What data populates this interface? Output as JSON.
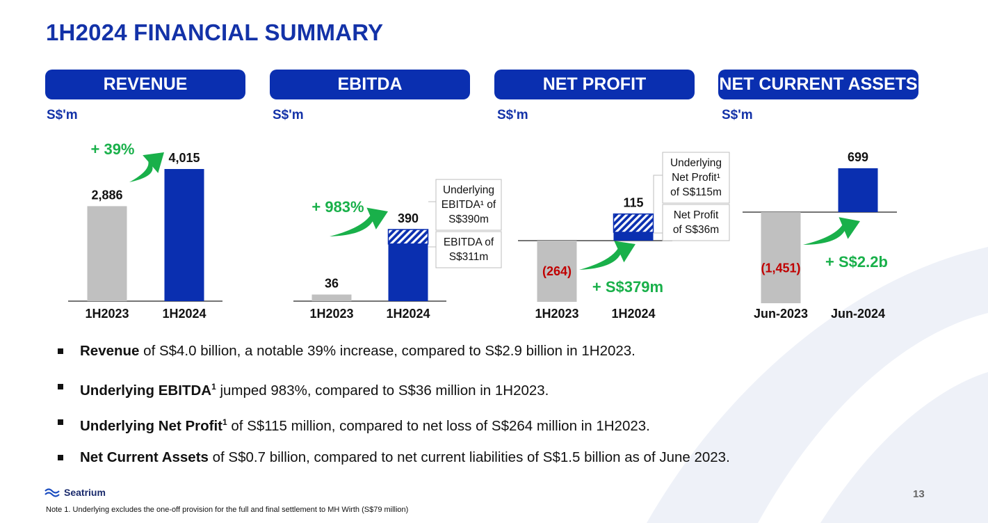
{
  "slide": {
    "title": "1H2024 FINANCIAL SUMMARY",
    "page_number": "13",
    "logo_text": "Seatrium",
    "note": "Note 1. Underlying excludes the one-off provision for the full and final settlement to MH Wirth (S$79 million)"
  },
  "colors": {
    "brand_blue": "#0a2fb0",
    "prior_gray": "#c0c0c0",
    "growth_green": "#19b04a",
    "negative_red": "#c00000"
  },
  "chart_data": [
    {
      "type": "bar",
      "title": "REVENUE",
      "unit": "S$'m",
      "categories": [
        "1H2023",
        "1H2024"
      ],
      "values": [
        2886,
        4015
      ],
      "value_labels": [
        "2,886",
        "4,015"
      ],
      "change_label": "+ 39%"
    },
    {
      "type": "bar",
      "title": "EBITDA",
      "unit": "S$'m",
      "categories": [
        "1H2023",
        "1H2024"
      ],
      "values": [
        36,
        390
      ],
      "value_labels": [
        "36",
        "390"
      ],
      "stacked_segments": [
        {
          "name": "EBITDA",
          "value": 311
        },
        {
          "name": "Underlying adjustment",
          "value": 79
        }
      ],
      "change_label": "+ 983%",
      "callouts": [
        {
          "lines": [
            "Underlying",
            "EBITDA¹ of",
            "S$390m"
          ]
        },
        {
          "lines": [
            "EBITDA of",
            "S$311m"
          ]
        }
      ]
    },
    {
      "type": "bar",
      "title": "NET PROFIT",
      "unit": "S$'m",
      "categories": [
        "1H2023",
        "1H2024"
      ],
      "values": [
        -264,
        115
      ],
      "value_labels": [
        "(264)",
        "115"
      ],
      "stacked_segments": [
        {
          "name": "Net Profit",
          "value": 36
        },
        {
          "name": "Underlying adjustment",
          "value": 79
        }
      ],
      "change_label": "+ S$379m",
      "callouts": [
        {
          "lines": [
            "Underlying",
            "Net Profit¹",
            "of S$115m"
          ]
        },
        {
          "lines": [
            "Net Profit",
            "of S$36m"
          ]
        }
      ]
    },
    {
      "type": "bar",
      "title": "NET CURRENT ASSETS",
      "unit": "S$'m",
      "categories": [
        "Jun-2023",
        "Jun-2024"
      ],
      "values": [
        -1451,
        699
      ],
      "value_labels": [
        "(1,451)",
        "699"
      ],
      "change_label": "+ S$2.2b"
    }
  ],
  "bullets": [
    {
      "bold": "Revenue",
      "sup": "",
      "text": " of S$4.0 billion, a notable 39% increase, compared to S$2.9 billion in 1H2023."
    },
    {
      "bold": "Underlying EBITDA",
      "sup": "1",
      "text": " jumped 983%, compared to S$36 million in 1H2023."
    },
    {
      "bold": "Underlying Net Profit",
      "sup": "1",
      "text": " of S$115 million, compared to net loss of S$264 million in 1H2023."
    },
    {
      "bold": "Net Current Assets",
      "sup": "",
      "text": " of S$0.7 billion, compared to net current liabilities of S$1.5 billion as of June 2023."
    }
  ]
}
